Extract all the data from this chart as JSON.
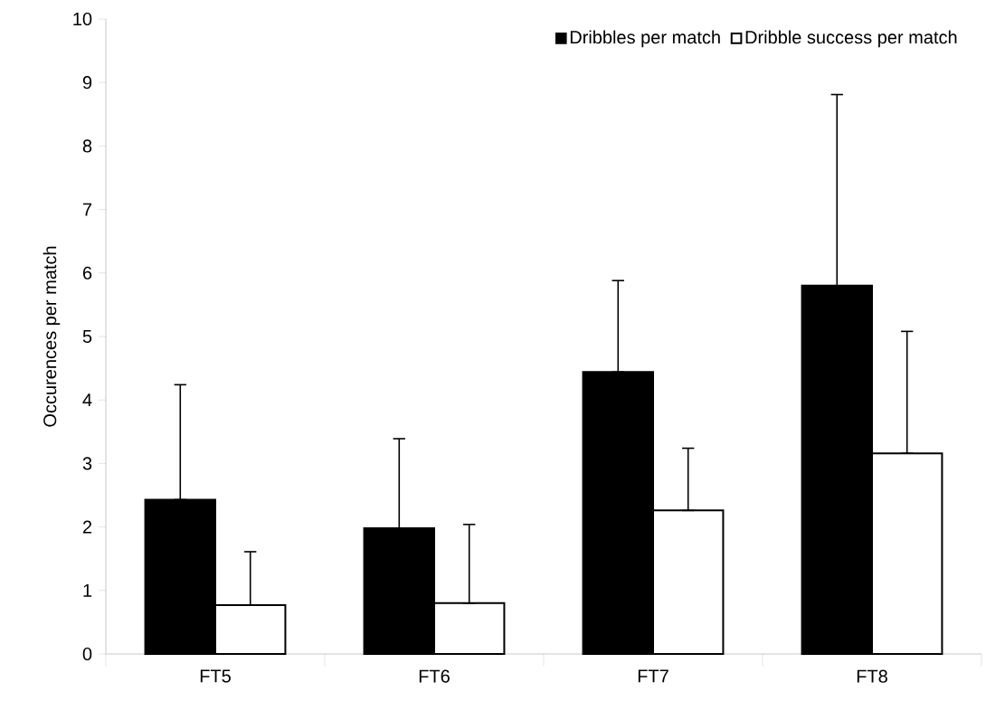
{
  "chart_data": {
    "type": "bar",
    "ylabel": "Occurences per match",
    "categories": [
      "FT5",
      "FT6",
      "FT7",
      "FT8"
    ],
    "series": [
      {
        "name": "Dribbles per match",
        "color": "#000000",
        "values": [
          2.43,
          1.98,
          4.44,
          5.8
        ],
        "errors": [
          [
            2.43,
            4.24
          ],
          [
            1.98,
            3.39
          ],
          [
            4.44,
            5.88
          ],
          [
            5.8,
            8.81
          ]
        ]
      },
      {
        "name": "Dribble success per match",
        "color": "#ffffff",
        "values": [
          0.77,
          0.8,
          2.26,
          3.16
        ],
        "errors": [
          [
            0.77,
            1.61
          ],
          [
            0.8,
            2.04
          ],
          [
            2.26,
            3.24
          ],
          [
            3.16,
            5.08
          ]
        ]
      }
    ],
    "ylim": [
      0,
      10
    ],
    "yticks": [
      0,
      1,
      2,
      3,
      4,
      5,
      6,
      7,
      8,
      9,
      10
    ],
    "grid": false,
    "legend": "top right"
  }
}
